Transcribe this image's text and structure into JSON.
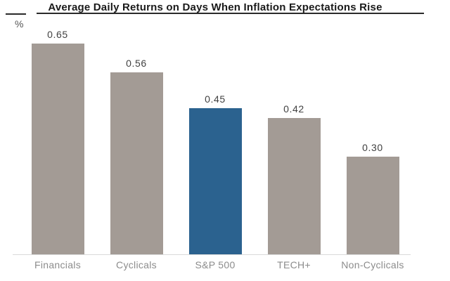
{
  "title": "Average Daily Returns on Days When Inflation Expectations Rise",
  "unit_label": "%",
  "chart_data": {
    "type": "bar",
    "title": "Average Daily Returns on Days When Inflation Expectations Rise",
    "ylabel": "%",
    "xlabel": "",
    "categories": [
      "Financials",
      "Cyclicals",
      "S&P 500",
      "TECH+",
      "Non-Cyclicals"
    ],
    "values": [
      0.65,
      0.56,
      0.45,
      0.42,
      0.3
    ],
    "value_labels": [
      "0.65",
      "0.56",
      "0.45",
      "0.42",
      "0.30"
    ],
    "highlight_index": 2,
    "highlighted_category": "S&P 500",
    "ylim": [
      0,
      0.75
    ],
    "grid": false,
    "legend": false,
    "colors": {
      "bar_default": "#a39b95",
      "bar_highlight": "#2b628f",
      "value_label": "#414141",
      "category_label": "#8c8c8c",
      "axis_line": "#d9d9d9",
      "title_text": "#1a1a1a",
      "title_rule": "#2a2a2a",
      "unit_label": "#555555"
    }
  }
}
